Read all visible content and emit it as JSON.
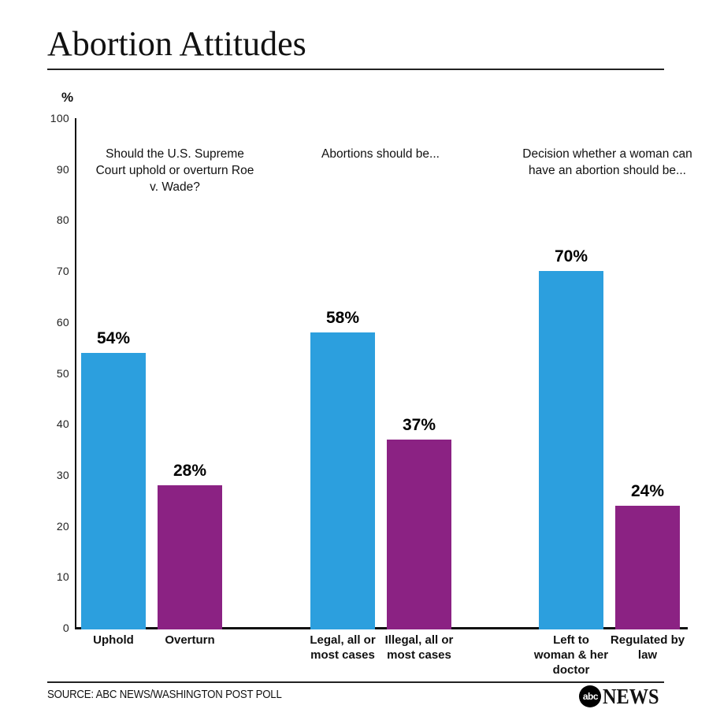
{
  "page": {
    "title": "Abortion Attitudes"
  },
  "colors": {
    "blue": "#2C9FDE",
    "purple": "#8B2283",
    "axis": "#111111"
  },
  "chart_data": {
    "type": "bar",
    "title": "Abortion Attitudes",
    "unit_label": "%",
    "ylim": [
      0,
      100
    ],
    "yticks": [
      0,
      10,
      20,
      30,
      40,
      50,
      60,
      70,
      80,
      90,
      100
    ],
    "grid": false,
    "legend": "none",
    "groups": [
      {
        "question": "Should the U.S. Supreme\nCourt uphold or overturn Roe\nv. Wade?",
        "bars": [
          {
            "label": "Uphold",
            "value": 54,
            "display": "54%",
            "color": "blue"
          },
          {
            "label": "Overturn",
            "value": 28,
            "display": "28%",
            "color": "purple"
          }
        ]
      },
      {
        "question": "Abortions should be...",
        "bars": [
          {
            "label": "Legal, all or\nmost cases",
            "value": 58,
            "display": "58%",
            "color": "blue"
          },
          {
            "label": "Illegal, all or\nmost cases",
            "value": 37,
            "display": "37%",
            "color": "purple"
          }
        ]
      },
      {
        "question": "Decision whether a woman can\nhave an abortion should be...",
        "bars": [
          {
            "label": "Left to\nwoman & her\ndoctor",
            "value": 70,
            "display": "70%",
            "color": "blue"
          },
          {
            "label": "Regulated by\nlaw",
            "value": 24,
            "display": "24%",
            "color": "purple"
          }
        ]
      }
    ]
  },
  "footer": {
    "source": "SOURCE: ABC NEWS/WASHINGTON POST POLL",
    "logo_abc": "abc",
    "logo_news": "NEWS"
  }
}
